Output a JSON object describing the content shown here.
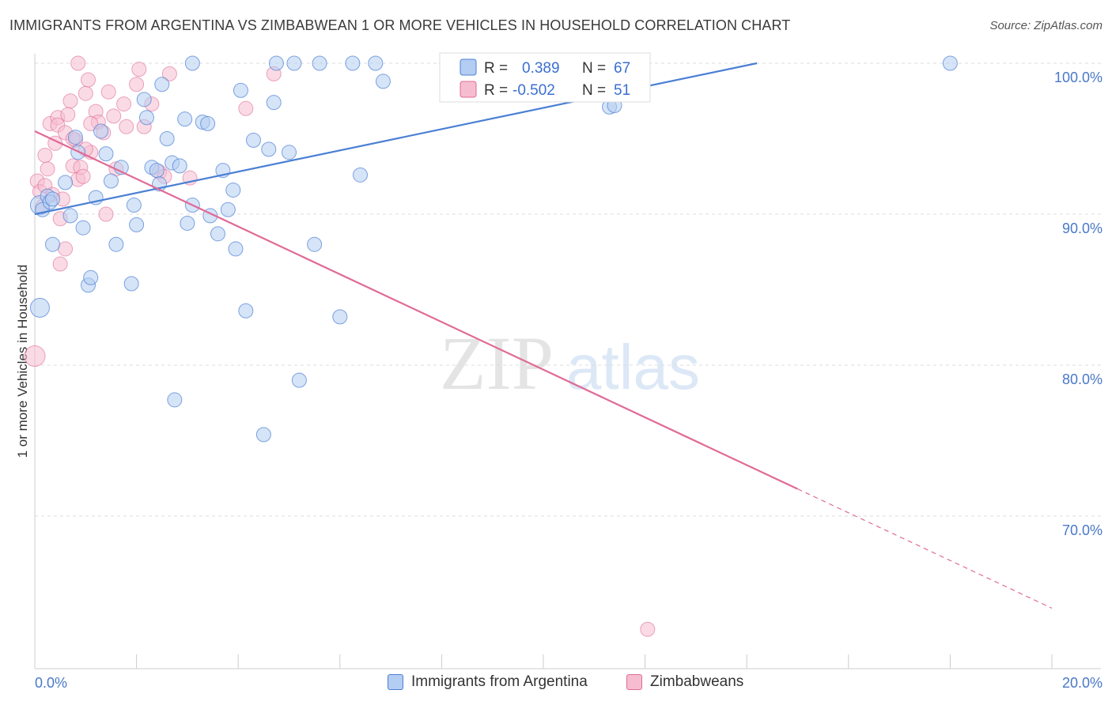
{
  "title": "IMMIGRANTS FROM ARGENTINA VS ZIMBABWEAN 1 OR MORE VEHICLES IN HOUSEHOLD CORRELATION CHART",
  "source": "Source: ZipAtlas.com",
  "watermark": {
    "zip": "ZIP",
    "atlas": "atlas"
  },
  "colors": {
    "argentina": "#4a7fd4",
    "argentina_fill": "#b4cdf2",
    "zimbabwe": "#e06a96",
    "zimbabwe_fill": "#f6bdd0",
    "tick_label": "#4a78c8"
  },
  "legend": {
    "rows": [
      {
        "r_label": "R =",
        "r_value": "0.389",
        "n_label": "N =",
        "n_value": "67"
      },
      {
        "r_label": "R =",
        "r_value": "-0.502",
        "n_label": "N =",
        "n_value": "51"
      }
    ]
  },
  "bottom_legend": [
    "Immigrants from Argentina",
    "Zimbabweans"
  ],
  "chart_data": {
    "type": "scatter",
    "title": "IMMIGRANTS FROM ARGENTINA VS ZIMBABWEAN 1 OR MORE VEHICLES IN HOUSEHOLD CORRELATION CHART",
    "xlabel": "",
    "ylabel": "1 or more Vehicles in Household",
    "xlim": [
      0,
      20
    ],
    "ylim": [
      61.5,
      101
    ],
    "x_tick_labels": [
      "0.0%",
      "20.0%"
    ],
    "y_ticks": [
      70,
      80,
      90,
      100
    ],
    "y_tick_labels": [
      "70.0%",
      "80.0%",
      "90.0%",
      "100.0%"
    ],
    "grid": true,
    "series": [
      {
        "name": "Immigrants from Argentina",
        "R": 0.389,
        "N": 67,
        "trend": {
          "x0": 0,
          "y0": 90.0,
          "x1": 14.2,
          "y1": 100.0,
          "dashed_to": null
        },
        "points": [
          [
            0.1,
            90.6
          ],
          [
            0.15,
            90.3
          ],
          [
            0.25,
            91.2
          ],
          [
            0.3,
            90.8
          ],
          [
            0.35,
            91.0
          ],
          [
            0.1,
            83.8
          ],
          [
            0.35,
            88.0
          ],
          [
            0.6,
            92.1
          ],
          [
            0.7,
            89.9
          ],
          [
            0.8,
            95.1
          ],
          [
            0.85,
            94.1
          ],
          [
            0.95,
            89.1
          ],
          [
            1.05,
            85.3
          ],
          [
            1.1,
            85.8
          ],
          [
            1.2,
            91.1
          ],
          [
            1.3,
            95.5
          ],
          [
            1.4,
            94.0
          ],
          [
            1.5,
            92.2
          ],
          [
            1.6,
            88.0
          ],
          [
            1.7,
            93.1
          ],
          [
            1.9,
            85.4
          ],
          [
            1.95,
            90.6
          ],
          [
            2.0,
            89.3
          ],
          [
            2.15,
            97.6
          ],
          [
            2.2,
            96.4
          ],
          [
            2.3,
            93.1
          ],
          [
            2.4,
            92.9
          ],
          [
            2.45,
            92.0
          ],
          [
            2.5,
            98.6
          ],
          [
            2.6,
            95.0
          ],
          [
            2.7,
            93.4
          ],
          [
            2.75,
            77.7
          ],
          [
            2.85,
            93.2
          ],
          [
            2.95,
            96.3
          ],
          [
            3.0,
            89.4
          ],
          [
            3.1,
            90.6
          ],
          [
            3.1,
            100.0
          ],
          [
            3.3,
            96.1
          ],
          [
            3.4,
            96.0
          ],
          [
            3.45,
            89.9
          ],
          [
            3.6,
            88.7
          ],
          [
            3.7,
            92.9
          ],
          [
            3.8,
            90.3
          ],
          [
            3.9,
            91.6
          ],
          [
            3.95,
            87.7
          ],
          [
            4.05,
            98.2
          ],
          [
            4.15,
            83.6
          ],
          [
            4.3,
            94.9
          ],
          [
            4.5,
            75.4
          ],
          [
            4.6,
            94.3
          ],
          [
            4.7,
            97.4
          ],
          [
            4.75,
            100.0
          ],
          [
            5.0,
            94.1
          ],
          [
            5.1,
            100.0
          ],
          [
            5.2,
            79.0
          ],
          [
            5.6,
            100.0
          ],
          [
            5.5,
            88.0
          ],
          [
            6.0,
            83.2
          ],
          [
            6.25,
            100.0
          ],
          [
            6.4,
            92.6
          ],
          [
            6.7,
            100.0
          ],
          [
            6.85,
            98.8
          ],
          [
            8.1,
            100.0
          ],
          [
            8.85,
            100.0
          ],
          [
            11.3,
            97.1
          ],
          [
            11.4,
            97.2
          ],
          [
            18.0,
            100.0
          ]
        ]
      },
      {
        "name": "Zimbabweans",
        "R": -0.502,
        "N": 51,
        "trend": {
          "x0": 0,
          "y0": 95.5,
          "x1": 15.0,
          "y1": 71.8,
          "dashed_to": {
            "x": 20,
            "y": 63.9
          }
        },
        "points": [
          [
            0.0,
            80.6
          ],
          [
            0.05,
            92.2
          ],
          [
            0.1,
            91.5
          ],
          [
            0.15,
            90.5
          ],
          [
            0.2,
            91.9
          ],
          [
            0.25,
            93.0
          ],
          [
            0.3,
            96.0
          ],
          [
            0.35,
            91.3
          ],
          [
            0.4,
            94.7
          ],
          [
            0.45,
            96.4
          ],
          [
            0.45,
            95.9
          ],
          [
            0.5,
            86.7
          ],
          [
            0.5,
            89.7
          ],
          [
            0.55,
            91.0
          ],
          [
            0.6,
            87.7
          ],
          [
            0.6,
            95.4
          ],
          [
            0.7,
            97.5
          ],
          [
            0.75,
            93.2
          ],
          [
            0.8,
            94.9
          ],
          [
            0.85,
            92.3
          ],
          [
            0.85,
            100.0
          ],
          [
            0.9,
            93.1
          ],
          [
            0.95,
            92.5
          ],
          [
            1.0,
            98.0
          ],
          [
            1.05,
            98.9
          ],
          [
            1.1,
            94.1
          ],
          [
            1.2,
            96.8
          ],
          [
            1.25,
            96.1
          ],
          [
            1.35,
            95.4
          ],
          [
            1.4,
            90.0
          ],
          [
            1.45,
            98.1
          ],
          [
            1.55,
            96.5
          ],
          [
            1.6,
            93.0
          ],
          [
            1.75,
            97.3
          ],
          [
            1.8,
            95.8
          ],
          [
            2.0,
            98.6
          ],
          [
            2.05,
            99.6
          ],
          [
            2.15,
            95.8
          ],
          [
            2.3,
            97.3
          ],
          [
            2.45,
            92.8
          ],
          [
            2.55,
            92.5
          ],
          [
            2.65,
            99.3
          ],
          [
            3.05,
            92.4
          ],
          [
            4.15,
            97.0
          ],
          [
            4.7,
            99.3
          ],
          [
            0.65,
            96.6
          ],
          [
            0.75,
            95.0
          ],
          [
            1.0,
            94.3
          ],
          [
            1.1,
            96.0
          ],
          [
            0.2,
            93.9
          ],
          [
            12.05,
            62.5
          ]
        ]
      }
    ]
  }
}
